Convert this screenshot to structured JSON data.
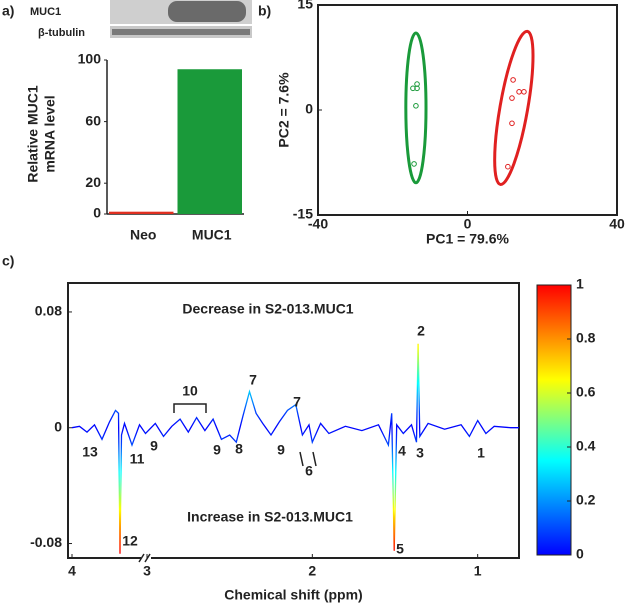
{
  "panel_labels": [
    "a)",
    "b)",
    "c)"
  ],
  "chart_data": [
    {
      "type": "bar",
      "blot_labels": [
        "MUC1",
        "β-tubulin"
      ],
      "ylabel": [
        "Relative MUC1",
        "mRNA level"
      ],
      "categories": [
        "Neo",
        "MUC1"
      ],
      "values": [
        1.5,
        94
      ],
      "colors": [
        "#e03020",
        "#1a9a3a"
      ],
      "ylim": [
        0,
        100
      ],
      "yticks": [
        0,
        20,
        60,
        100
      ]
    },
    {
      "type": "scatter",
      "xlabel": "PC1 = 79.6%",
      "ylabel": "PC2 = 7.6%",
      "xlim": [
        -40,
        40
      ],
      "ylim": [
        -15,
        15
      ],
      "xticks": [
        -40,
        0,
        40
      ],
      "yticks": [
        -15,
        0,
        15
      ],
      "series": [
        {
          "color": "#1a9a3a",
          "x": [
            -13.5,
            -14.6,
            -13.5,
            -13.8,
            -14.3
          ],
          "values": [
            3.7,
            3.1,
            3.1,
            0.6,
            -7.7
          ],
          "ellipse": {
            "cx": -13.8,
            "cy": 0.3,
            "rx": 2.7,
            "ry": 10.7,
            "angle": 0
          }
        },
        {
          "color": "#e02020",
          "x": [
            12.2,
            13.8,
            15.1,
            11.9,
            11.9,
            10.8
          ],
          "values": [
            4.3,
            2.6,
            2.6,
            1.7,
            -1.9,
            -8.1
          ],
          "ellipse": {
            "cx": 12.4,
            "cy": 0.3,
            "rx": 3.7,
            "ry": 11.1,
            "angle": 10
          }
        }
      ]
    },
    {
      "type": "line",
      "xlabel": "Chemical shift (ppm)",
      "x": [
        4.0,
        3.9,
        3.8,
        3.7,
        3.6,
        3.5,
        3.42,
        3.38,
        3.36,
        3.34,
        3.3,
        3.2,
        3.1,
        3.02,
        2.95,
        2.9,
        2.85,
        2.8,
        2.75,
        2.7,
        2.65,
        2.6,
        2.55,
        2.5,
        2.46,
        2.42,
        2.38,
        2.34,
        2.3,
        2.25,
        2.2,
        2.15,
        2.1,
        2.06,
        2.02,
        2.0,
        1.95,
        1.9,
        1.8,
        1.7,
        1.6,
        1.54,
        1.52,
        1.505,
        1.49,
        1.45,
        1.4,
        1.37,
        1.36,
        1.35,
        1.3,
        1.2,
        1.1,
        1.05,
        1.0,
        0.95,
        0.9,
        0.8,
        0.75
      ],
      "values": [
        0,
        0.001,
        -0.003,
        0.002,
        -0.008,
        0.004,
        0.012,
        0.01,
        -0.087,
        -0.005,
        0.003,
        -0.012,
        0.002,
        -0.004,
        0.003,
        -0.006,
        0.001,
        0.006,
        -0.003,
        0.007,
        -0.002,
        0.006,
        -0.008,
        -0.005,
        -0.01,
        0.008,
        0.025,
        0.01,
        0.003,
        -0.005,
        0.004,
        0.012,
        0.016,
        -0.005,
        0.002,
        -0.01,
        0.003,
        -0.004,
        0.001,
        -0.002,
        0.002,
        -0.012,
        0.01,
        -0.085,
        0.002,
        -0.004,
        0.002,
        -0.01,
        0.058,
        -0.006,
        0.003,
        -0.001,
        0.002,
        -0.006,
        0.005,
        -0.004,
        0.001,
        0,
        0
      ],
      "xlim": [
        4,
        0.75
      ],
      "xbreak": 3,
      "xticks": [
        4,
        3,
        2,
        1
      ],
      "ylim": [
        -0.09,
        0.1
      ],
      "yticks": [
        -0.08,
        0,
        0.08
      ],
      "annotations": [
        "Decrease in S2-013.MUC1",
        "Increase in S2-013.MUC1"
      ],
      "peak_labels": [
        "13",
        "12",
        "11",
        "9",
        "10",
        "9",
        "8",
        "7",
        "7",
        "9",
        "6",
        "4",
        "5",
        "2",
        "3",
        "1"
      ],
      "colormap": "jet",
      "colorbar": {
        "lim": [
          0,
          1
        ],
        "ticks": [
          0,
          0.2,
          0.4,
          0.6,
          0.8,
          1
        ]
      }
    }
  ]
}
